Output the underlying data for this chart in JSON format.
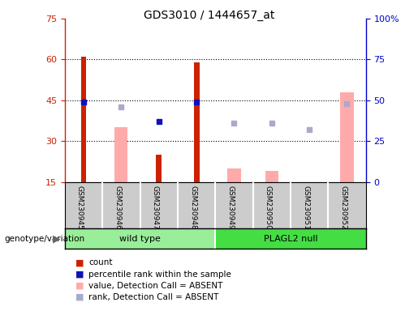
{
  "title": "GDS3010 / 1444657_at",
  "samples": [
    "GSM230945",
    "GSM230946",
    "GSM230947",
    "GSM230948",
    "GSM230949",
    "GSM230950",
    "GSM230951",
    "GSM230952"
  ],
  "count": [
    61,
    null,
    25,
    59,
    null,
    null,
    null,
    null
  ],
  "percentile_rank": [
    49,
    null,
    37,
    49,
    null,
    null,
    null,
    null
  ],
  "value_absent": [
    null,
    35,
    null,
    null,
    20,
    19,
    14,
    48
  ],
  "rank_absent": [
    null,
    46,
    null,
    null,
    36,
    36,
    32,
    48
  ],
  "left_ylim": [
    15,
    75
  ],
  "left_yticks": [
    15,
    30,
    45,
    60,
    75
  ],
  "right_ylim": [
    0,
    100
  ],
  "right_yticks": [
    0,
    25,
    50,
    75,
    100
  ],
  "right_yticklabels": [
    "0",
    "25",
    "50",
    "75",
    "100%"
  ],
  "color_count": "#cc2200",
  "color_rank": "#1111bb",
  "color_value_absent": "#ffaaaa",
  "color_rank_absent": "#aaaacc",
  "bg_plot": "#ffffff",
  "bg_label": "#cccccc",
  "bg_wildtype": "#99ee99",
  "bg_plagl2": "#44dd44",
  "count_bar_width": 0.15,
  "absent_bar_width": 0.35
}
